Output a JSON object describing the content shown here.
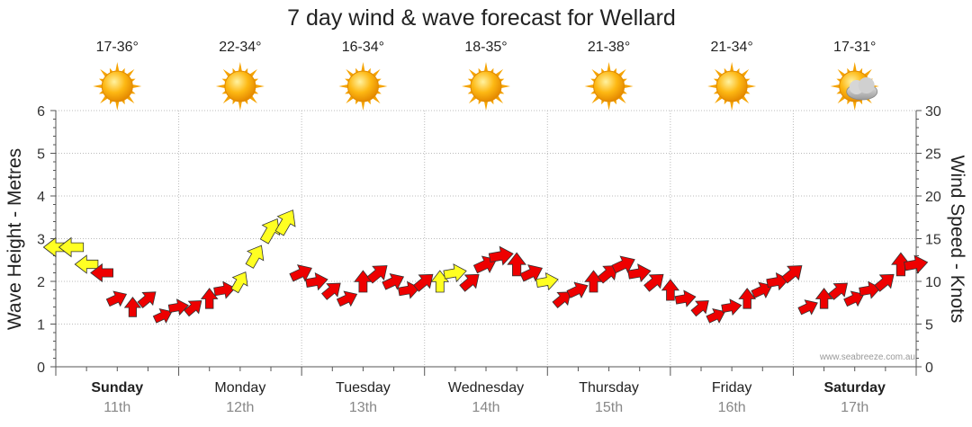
{
  "chart_data": {
    "type": "line",
    "title": "7 day wind & wave forecast for Wellard",
    "ylabel_left": "Wave Height - Metres",
    "ylabel_right": "Wind Speed - Knots",
    "ylim_left": [
      0,
      6
    ],
    "ylim_right": [
      0,
      30
    ],
    "left_ticks": [
      "0",
      "1",
      "2",
      "3",
      "4",
      "5",
      "6"
    ],
    "right_ticks": [
      "0",
      "5",
      "10",
      "15",
      "20",
      "25",
      "30"
    ],
    "days": [
      {
        "name": "Sunday",
        "date": "11th",
        "bold": true,
        "temp": "17-36°",
        "icon": "sun-icon"
      },
      {
        "name": "Monday",
        "date": "12th",
        "bold": false,
        "temp": "22-34°",
        "icon": "sun-icon"
      },
      {
        "name": "Tuesday",
        "date": "13th",
        "bold": false,
        "temp": "16-34°",
        "icon": "sun-icon"
      },
      {
        "name": "Wednesday",
        "date": "14th",
        "bold": false,
        "temp": "18-35°",
        "icon": "sun-icon"
      },
      {
        "name": "Thursday",
        "date": "15th",
        "bold": false,
        "temp": "21-38°",
        "icon": "sun-icon"
      },
      {
        "name": "Friday",
        "date": "16th",
        "bold": false,
        "temp": "21-34°",
        "icon": "sun-icon"
      },
      {
        "name": "Saturday",
        "date": "17th",
        "bold": true,
        "temp": "17-31°",
        "icon": "sun-cloud-icon"
      }
    ],
    "wind": {
      "unit": "knots",
      "t_hours": [
        0,
        3,
        6,
        9,
        12,
        15,
        18,
        21,
        24,
        27,
        30,
        33,
        36,
        39,
        42,
        45,
        48,
        51,
        54,
        57,
        60,
        63,
        66,
        69,
        72,
        75,
        78,
        81,
        84,
        87,
        90,
        93,
        96,
        99,
        102,
        105,
        108,
        111,
        114,
        117,
        120,
        123,
        126,
        129,
        132,
        135,
        138,
        141,
        144,
        147,
        150,
        153,
        156,
        159,
        162,
        165,
        168
      ],
      "speed_knots": [
        14,
        14,
        12,
        11,
        8,
        7,
        8,
        6,
        7,
        7,
        8,
        9,
        10,
        13,
        16,
        17,
        11,
        10,
        9,
        8,
        10,
        11,
        10,
        9,
        10,
        10,
        11,
        10,
        12,
        13,
        12,
        11,
        10,
        8,
        9,
        10,
        11,
        12,
        11,
        10,
        9,
        8,
        7,
        6,
        7,
        8,
        9,
        10,
        11,
        7,
        8,
        9,
        8,
        9,
        10,
        12,
        12
      ]
    },
    "wave": {
      "unit": "metres"
    },
    "colors": {
      "strong_wind": "#ee0000",
      "light_wind": "#ffff22",
      "arrow_outline": "#333333",
      "grid": "#bbbbbb"
    }
  },
  "credit": "www.seabreeze.com.au"
}
